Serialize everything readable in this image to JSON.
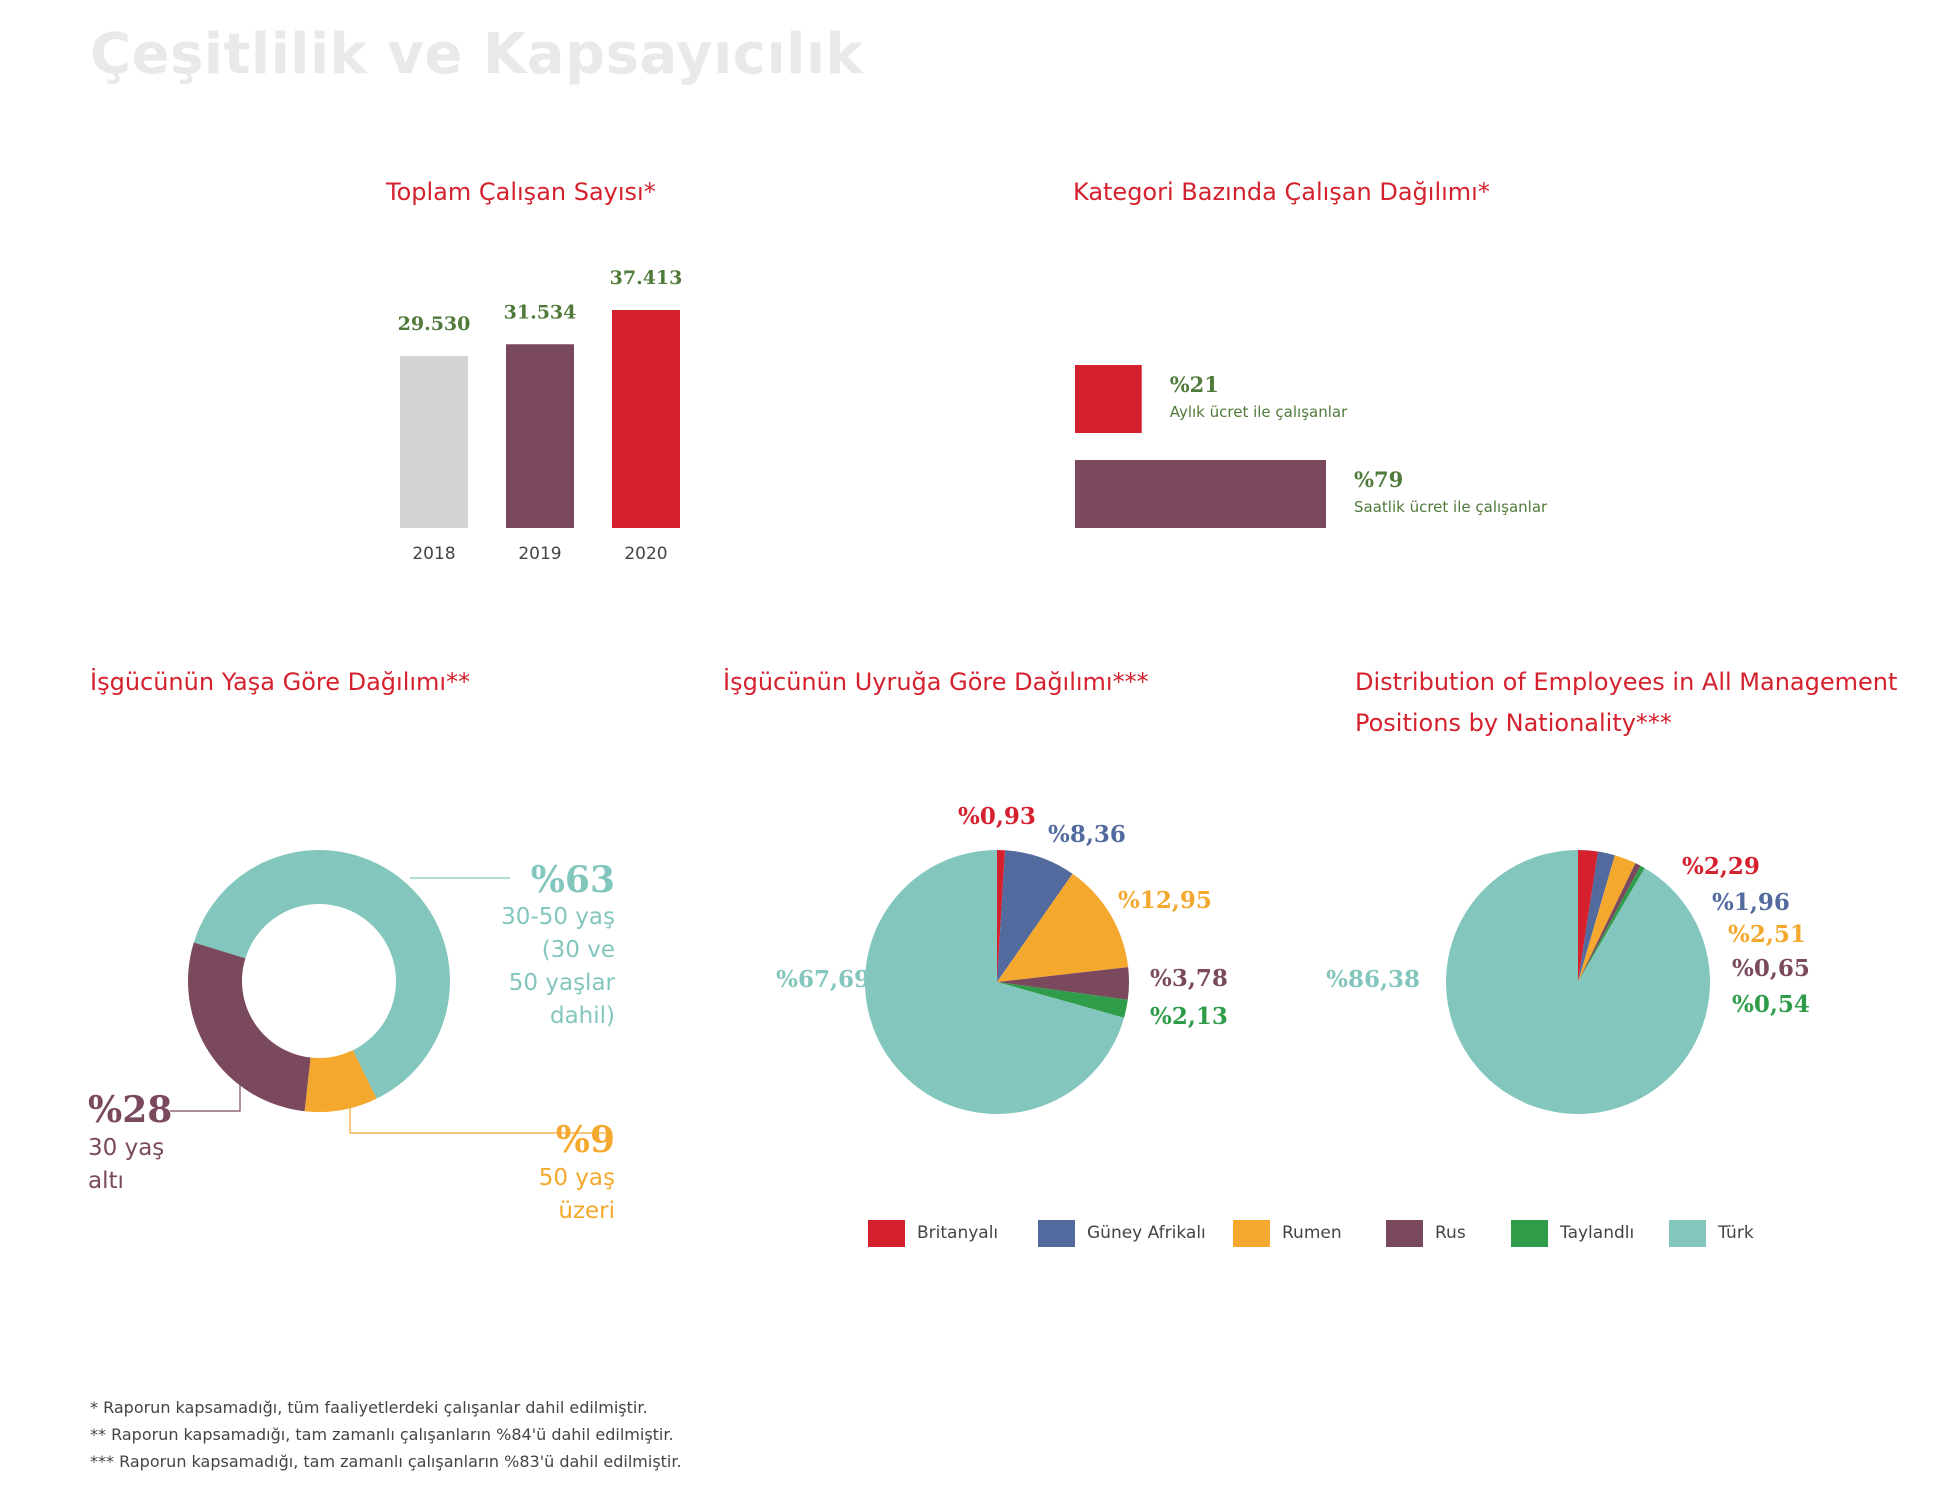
{
  "page_title": "Çeşitlilik ve Kapsayıcılık",
  "colors": {
    "red": "#d4212d",
    "purple": "#7a495d",
    "gray": "#d4d4d5",
    "teal": "#83c6bd",
    "orange": "#f4a82d",
    "blue": "#536a9f",
    "green": "#2e9c48",
    "value_green": "#4f7a3a"
  },
  "chart_data": [
    {
      "type": "bar",
      "title": "Toplam Çalışan Sayısı*",
      "categories": [
        "2018",
        "2019",
        "2020"
      ],
      "values": [
        29530,
        31534,
        37413
      ],
      "value_labels": [
        "29.530",
        "31.534",
        "37.413"
      ],
      "bar_colors": [
        "#d4d4d5",
        "#7a495d",
        "#d4212d"
      ],
      "ylim": [
        0,
        37413
      ]
    },
    {
      "type": "bar",
      "orientation": "horizontal",
      "title": "Kategori Bazında Çalışan Dağılımı*",
      "categories": [
        "Aylık ücret ile çalışanlar",
        "Saatlik ücret ile çalışanlar"
      ],
      "values": [
        21,
        79
      ],
      "value_labels": [
        "%21",
        "%79"
      ],
      "bar_colors": [
        "#d4212d",
        "#7a495d"
      ]
    },
    {
      "type": "pie",
      "style": "donut",
      "title": "İşgücünün Yaşa Göre Dağılımı**",
      "slices": [
        {
          "value": 63,
          "label": "%63",
          "desc_lines": [
            "30-50 yaş",
            "(30 ve",
            "50 yaşlar",
            "dahil)"
          ],
          "color": "#83c6bd"
        },
        {
          "value": 9,
          "label": "%9",
          "desc_lines": [
            "50 yaş",
            "üzeri"
          ],
          "color": "#f4a82d"
        },
        {
          "value": 28,
          "label": "%28",
          "desc_lines": [
            "30 yaş",
            "altı"
          ],
          "color": "#7a495d"
        }
      ]
    },
    {
      "type": "pie",
      "title": "İşgücünün Uyruğa Göre Dağılımı***",
      "slices": [
        {
          "name": "Britanyalı",
          "value": 0.93,
          "label": "%0,93",
          "color": "#d4212d"
        },
        {
          "name": "Güney Afrikalı",
          "value": 8.36,
          "label": "%8,36",
          "color": "#536a9f"
        },
        {
          "name": "Rumen",
          "value": 12.95,
          "label": "%12,95",
          "color": "#f4a82d"
        },
        {
          "name": "Rus",
          "value": 3.78,
          "label": "%3,78",
          "color": "#7a495d"
        },
        {
          "name": "Taylandlı",
          "value": 2.13,
          "label": "%2,13",
          "color": "#2e9c48"
        },
        {
          "name": "Türk",
          "value": 67.69,
          "label": "%67,69",
          "color": "#83c6bd"
        }
      ]
    },
    {
      "type": "pie",
      "title_lines": [
        "Distribution of Employees in All Management",
        "Positions by Nationality***"
      ],
      "slices": [
        {
          "name": "Britanyalı",
          "value": 2.29,
          "label": "%2,29",
          "color": "#d4212d"
        },
        {
          "name": "Güney Afrikalı",
          "value": 1.96,
          "label": "%1,96",
          "color": "#536a9f"
        },
        {
          "name": "Rumen",
          "value": 2.51,
          "label": "%2,51",
          "color": "#f4a82d"
        },
        {
          "name": "Rus",
          "value": 0.65,
          "label": "%0,65",
          "color": "#7a495d"
        },
        {
          "name": "Taylandlı",
          "value": 0.54,
          "label": "%0,54",
          "color": "#2e9c48"
        },
        {
          "name": "Türk",
          "value": 86.38,
          "label": "%86,38",
          "color": "#83c6bd"
        }
      ]
    }
  ],
  "legend": [
    {
      "label": "Britanyalı",
      "color": "#d4212d"
    },
    {
      "label": "Güney Afrikalı",
      "color": "#536a9f"
    },
    {
      "label": "Rumen",
      "color": "#f4a82d"
    },
    {
      "label": "Rus",
      "color": "#7a495d"
    },
    {
      "label": "Taylandlı",
      "color": "#2e9c48"
    },
    {
      "label": "Türk",
      "color": "#83c6bd"
    }
  ],
  "footnotes": [
    "* Raporun kapsamadığı, tüm faaliyetlerdeki çalışanlar dahil edilmiştir.",
    "** Raporun kapsamadığı, tam zamanlı çalışanların %84'ü dahil edilmiştir.",
    "*** Raporun kapsamadığı, tam zamanlı çalışanların %83'ü dahil edilmiştir."
  ]
}
